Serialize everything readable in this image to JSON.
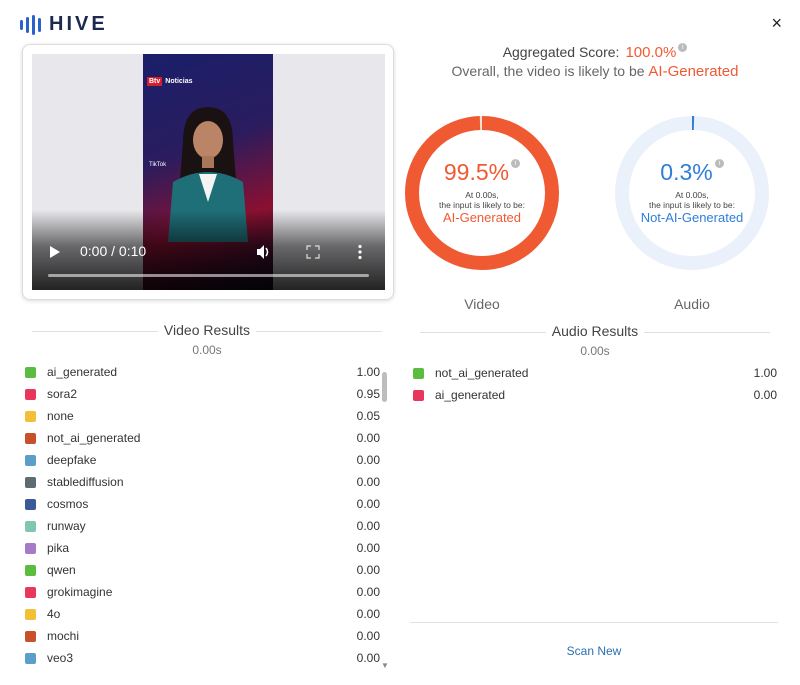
{
  "header": {
    "logo_text": "HIVE",
    "close_label": "×"
  },
  "player": {
    "time_display": "0:00 / 0:10",
    "overlay_brand": "Btv",
    "overlay_channel": "Noticias",
    "overlay_watermark": "TikTok"
  },
  "aggregate": {
    "label": "Aggregated Score:",
    "value": "100.0%",
    "summary_prefix": "Overall, the video is likely to be",
    "summary_verdict": "AI-Generated"
  },
  "donuts": {
    "video": {
      "percent_text": "99.5%",
      "fraction": 0.995,
      "at_line": "At 0.00s,",
      "likely_line": "the input is likely to be:",
      "verdict": "AI-Generated",
      "caption": "Video",
      "color": "#f05a33",
      "track_color": "#fde2d8"
    },
    "audio": {
      "percent_text": "0.3%",
      "fraction": 0.003,
      "at_line": "At 0.00s,",
      "likely_line": "the input is likely to be:",
      "verdict": "Not-AI-Generated",
      "caption": "Audio",
      "color": "#2f7ed8",
      "track_color": "#eaf1fb"
    }
  },
  "video_results": {
    "title": "Video Results",
    "time": "0.00s",
    "rows": [
      {
        "label": "ai_generated",
        "value": "1.00",
        "color": "#5bbd3f"
      },
      {
        "label": "sora2",
        "value": "0.95",
        "color": "#e8365d"
      },
      {
        "label": "none",
        "value": "0.05",
        "color": "#f2c037"
      },
      {
        "label": "not_ai_generated",
        "value": "0.00",
        "color": "#c8502a"
      },
      {
        "label": "deepfake",
        "value": "0.00",
        "color": "#5a9ec9"
      },
      {
        "label": "stablediffusion",
        "value": "0.00",
        "color": "#5f6b73"
      },
      {
        "label": "cosmos",
        "value": "0.00",
        "color": "#3a5a9a"
      },
      {
        "label": "runway",
        "value": "0.00",
        "color": "#7fc7b3"
      },
      {
        "label": "pika",
        "value": "0.00",
        "color": "#a57bc7"
      },
      {
        "label": "qwen",
        "value": "0.00",
        "color": "#5bbd3f"
      },
      {
        "label": "grokimagine",
        "value": "0.00",
        "color": "#e8365d"
      },
      {
        "label": "4o",
        "value": "0.00",
        "color": "#f2c037"
      },
      {
        "label": "mochi",
        "value": "0.00",
        "color": "#c8502a"
      },
      {
        "label": "veo3",
        "value": "0.00",
        "color": "#5a9ec9"
      }
    ]
  },
  "audio_results": {
    "title": "Audio Results",
    "time": "0.00s",
    "rows": [
      {
        "label": "not_ai_generated",
        "value": "1.00",
        "color": "#5bbd3f"
      },
      {
        "label": "ai_generated",
        "value": "0.00",
        "color": "#e8365d"
      }
    ]
  },
  "footer": {
    "scan_new_label": "Scan New"
  }
}
